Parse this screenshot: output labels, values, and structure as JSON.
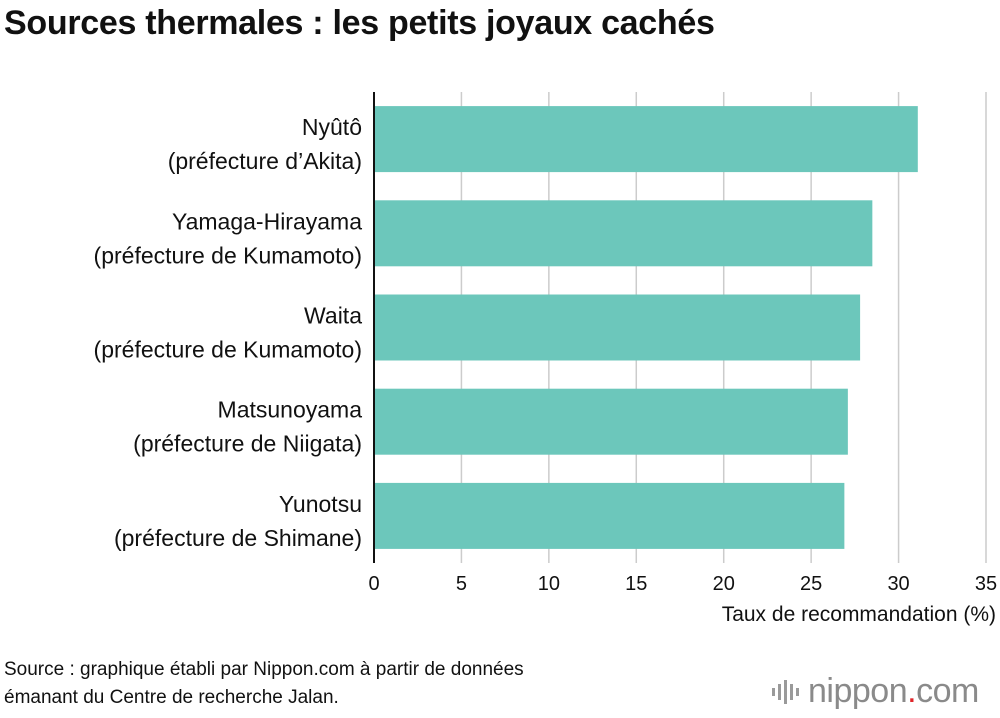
{
  "title": "Sources thermales : les petits joyaux cachés",
  "chart_data": {
    "type": "bar",
    "orientation": "horizontal",
    "categories": [
      [
        "Nyûtô",
        "(préfecture d’Akita)"
      ],
      [
        "Yamaga-Hirayama",
        "(préfecture de Kumamoto)"
      ],
      [
        "Waita",
        "(préfecture de Kumamoto)"
      ],
      [
        "Matsunoyama",
        "(préfecture de Niigata)"
      ],
      [
        "Yunotsu",
        "(préfecture de Shimane)"
      ]
    ],
    "values": [
      31.1,
      28.5,
      27.8,
      27.1,
      26.9
    ],
    "xlim": [
      0,
      35
    ],
    "xticks": [
      0,
      5,
      10,
      15,
      20,
      25,
      30,
      35
    ],
    "xlabel": "Taux de recommandation (%)",
    "grid": true,
    "bar_color": "#6cc7bb"
  },
  "source": {
    "line1": "Source : graphique établi par Nippon.com à partir de données",
    "line2": "émanant du Centre de recherche Jalan."
  },
  "logo": {
    "name": "nippon",
    "dot": ".",
    "suffix": "com",
    "accent_color": "#e0252a"
  }
}
